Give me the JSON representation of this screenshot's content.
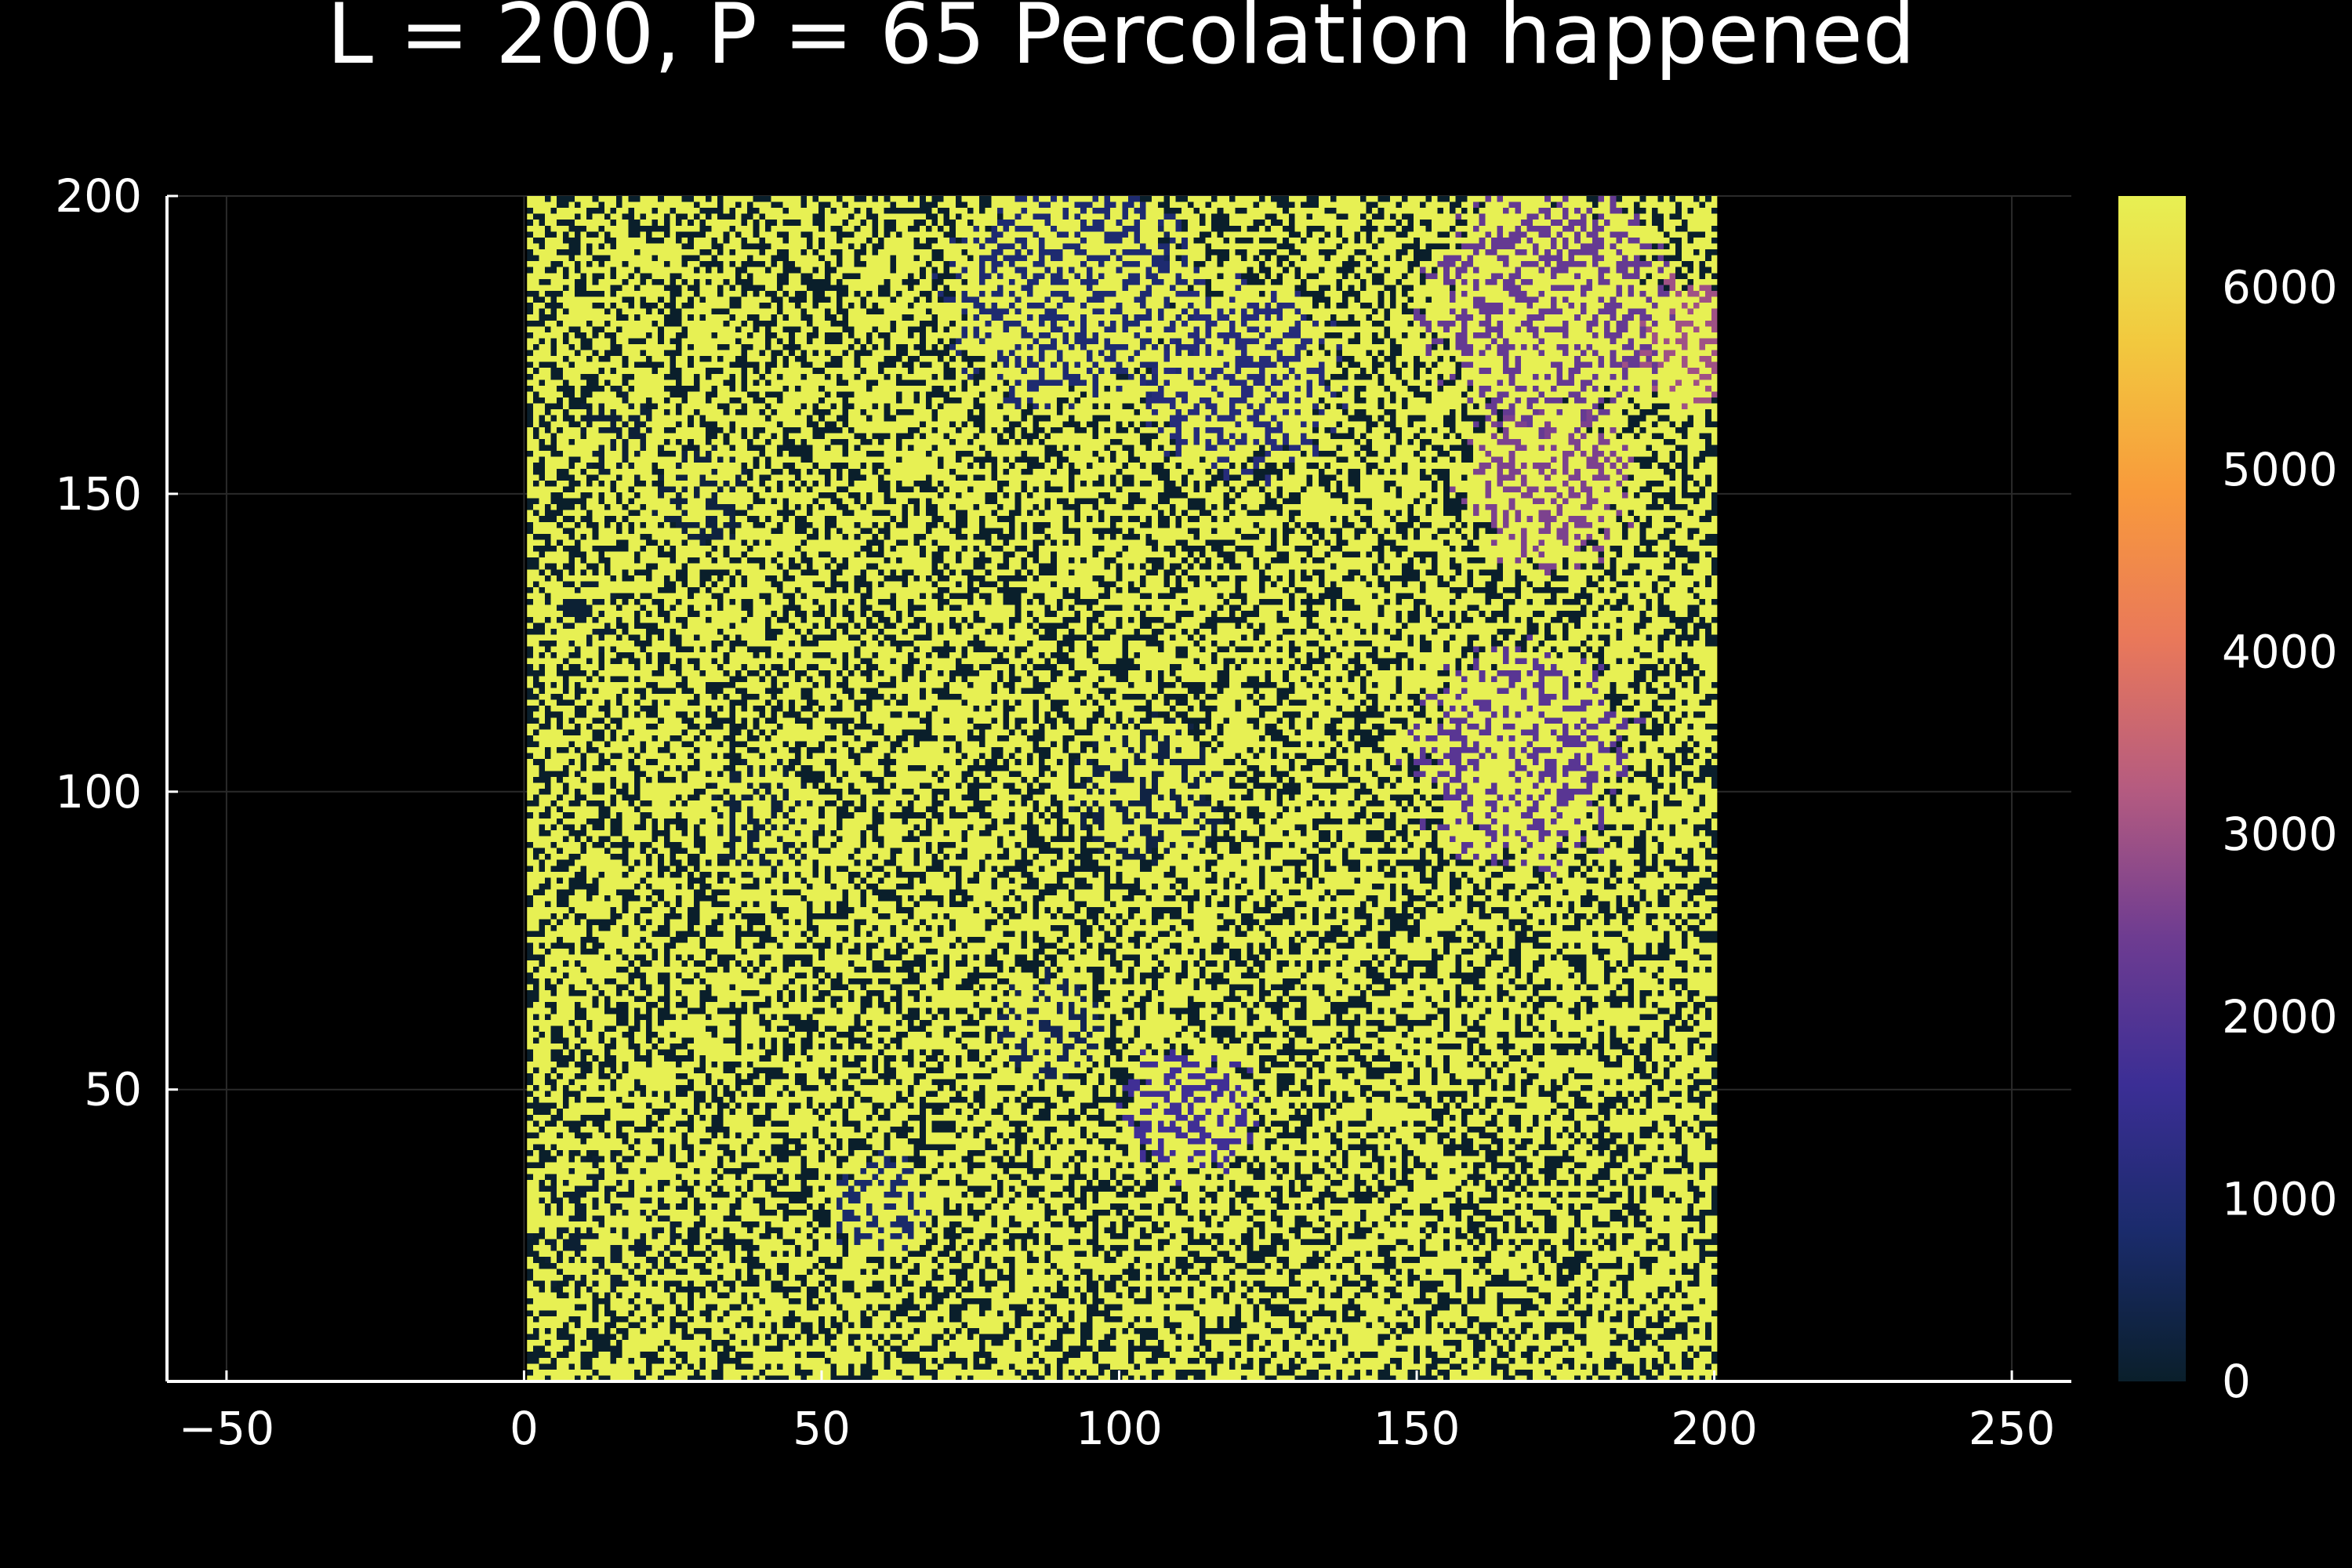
{
  "chart_data": {
    "type": "heatmap",
    "title": "L = 200, P = 65 Percolation happened",
    "xlabel": "",
    "ylabel": "",
    "xlim": [
      -60,
      260
    ],
    "ylim": [
      1,
      200
    ],
    "grid": true,
    "x_ticks": [
      {
        "value": -50,
        "label": "−50"
      },
      {
        "value": 0,
        "label": "0"
      },
      {
        "value": 50,
        "label": "50"
      },
      {
        "value": 100,
        "label": "100"
      },
      {
        "value": 150,
        "label": "150"
      },
      {
        "value": 200,
        "label": "200"
      },
      {
        "value": 250,
        "label": "250"
      }
    ],
    "y_ticks": [
      {
        "value": 50,
        "label": "50"
      },
      {
        "value": 100,
        "label": "100"
      },
      {
        "value": 150,
        "label": "150"
      },
      {
        "value": 200,
        "label": "200"
      }
    ],
    "grid_size": [
      200,
      200
    ],
    "colorbar": {
      "min": 0,
      "max": 6500,
      "ticks": [
        {
          "value": 0,
          "label": "0"
        },
        {
          "value": 1000,
          "label": "1000"
        },
        {
          "value": 2000,
          "label": "2000"
        },
        {
          "value": 3000,
          "label": "3000"
        },
        {
          "value": 4000,
          "label": "4000"
        },
        {
          "value": 5000,
          "label": "5000"
        },
        {
          "value": 6000,
          "label": "6000"
        }
      ],
      "colormap": [
        "#0a1f2b",
        "#1a2b6b",
        "#3b2e95",
        "#6e3c91",
        "#b55b80",
        "#e9785a",
        "#f89a3c",
        "#f2c83e",
        "#e7f053"
      ]
    },
    "percolating_cluster_value": 6500,
    "cluster_regions": [
      {
        "x": 92,
        "y": 185,
        "r": 20,
        "value": 900
      },
      {
        "x": 120,
        "y": 170,
        "r": 16,
        "value": 1100
      },
      {
        "x": 172,
        "y": 182,
        "r": 20,
        "value": 2300
      },
      {
        "x": 195,
        "y": 176,
        "r": 10,
        "value": 3000
      },
      {
        "x": 172,
        "y": 152,
        "r": 14,
        "value": 2600
      },
      {
        "x": 168,
        "y": 106,
        "r": 18,
        "value": 2100
      },
      {
        "x": 105,
        "y": 100,
        "r": 12,
        "value": 300
      },
      {
        "x": 112,
        "y": 46,
        "r": 11,
        "value": 1700
      },
      {
        "x": 88,
        "y": 60,
        "r": 9,
        "value": 500
      },
      {
        "x": 60,
        "y": 30,
        "r": 8,
        "value": 800
      },
      {
        "x": 14,
        "y": 27,
        "r": 12,
        "value": 100
      },
      {
        "x": 16,
        "y": 160,
        "r": 7,
        "value": 150
      },
      {
        "x": 10,
        "y": 130,
        "r": 6,
        "value": 120
      },
      {
        "x": 40,
        "y": 95,
        "r": 9,
        "value": 200
      },
      {
        "x": 30,
        "y": 150,
        "r": 8,
        "value": 250
      },
      {
        "x": 100,
        "y": 190,
        "r": 8,
        "value": 600
      }
    ]
  }
}
